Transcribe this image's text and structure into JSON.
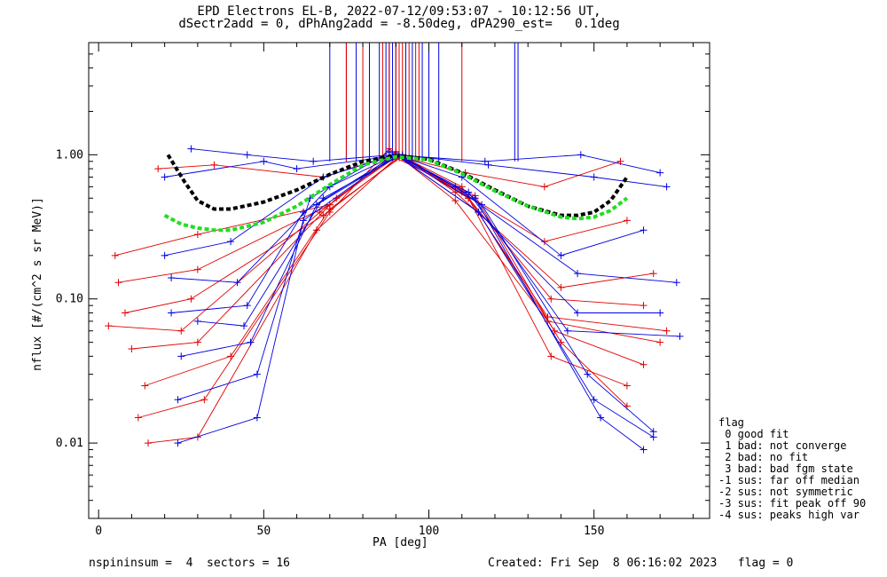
{
  "header": {
    "title_line1": "EPD Electrons EL-B, 2022-07-12/09:53:07 - 10:12:56 UT,",
    "title_line2": "dSectr2add = 0, dPhAng2add = -8.50deg, dPA290_est=   0.1deg"
  },
  "footer": {
    "left": "nspininsum =  4  sectors = 16",
    "right": "Created: Fri Sep  8 06:16:02 2023   flag = 0"
  },
  "legend": {
    "title": "flag",
    "items": [
      " 0 good fit",
      " 1 bad: not converge",
      " 2 bad: no fit",
      " 3 bad: bad fgm state",
      "-1 sus: far off median",
      "-2 sus: not symmetric",
      "-3 sus: fit peak off 90",
      "-4 sus: peaks high var"
    ]
  },
  "colors": {
    "red": "#e00000",
    "blue": "#0000e0",
    "black_fit": "#000000",
    "green_fit": "#22dd22"
  },
  "chart_data": {
    "type": "line",
    "xlabel": "PA [deg]",
    "ylabel": "nflux [#/(cm^2 s sr MeV)]",
    "xlim": [
      -3,
      185
    ],
    "ylim": [
      0.003,
      6.0
    ],
    "yscale": "log",
    "xticks": [
      0,
      50,
      100,
      150
    ],
    "yticks": [
      {
        "value": 0.01,
        "label": "0.01"
      },
      {
        "value": 0.1,
        "label": "0.10"
      },
      {
        "value": 1.0,
        "label": "1.00"
      }
    ],
    "series": [
      {
        "color": "red",
        "x": [
          5,
          30,
          70,
          90,
          110,
          135,
          160
        ],
        "y": [
          0.2,
          0.28,
          0.45,
          1.05,
          0.55,
          0.25,
          0.35
        ]
      },
      {
        "color": "red",
        "x": [
          8,
          28,
          68,
          92,
          112,
          137,
          165
        ],
        "y": [
          0.08,
          0.1,
          0.38,
          1.0,
          0.5,
          0.1,
          0.09
        ]
      },
      {
        "color": "red",
        "x": [
          12,
          32,
          70,
          88,
          108,
          136,
          170
        ],
        "y": [
          0.015,
          0.02,
          0.4,
          1.1,
          0.48,
          0.07,
          0.05
        ]
      },
      {
        "color": "red",
        "x": [
          15,
          30,
          66,
          90,
          114,
          140,
          160
        ],
        "y": [
          0.01,
          0.011,
          0.3,
          0.95,
          0.52,
          0.05,
          0.018
        ]
      },
      {
        "color": "red",
        "x": [
          10,
          30,
          72,
          91,
          110,
          138,
          165
        ],
        "y": [
          0.045,
          0.05,
          0.5,
          1.0,
          0.6,
          0.06,
          0.035
        ]
      },
      {
        "color": "red",
        "x": [
          18,
          35,
          68,
          89,
          111,
          135,
          158
        ],
        "y": [
          0.8,
          0.85,
          0.7,
          1.0,
          0.75,
          0.6,
          0.9
        ]
      },
      {
        "color": "red",
        "x": [
          3,
          25,
          67,
          90,
          112,
          136,
          172
        ],
        "y": [
          0.065,
          0.06,
          0.4,
          1.0,
          0.5,
          0.075,
          0.06
        ]
      },
      {
        "color": "red",
        "x": [
          6,
          30,
          70,
          90,
          108,
          140,
          168
        ],
        "y": [
          0.13,
          0.16,
          0.45,
          1.05,
          0.55,
          0.12,
          0.15
        ]
      },
      {
        "color": "red",
        "x": [
          14,
          40,
          70,
          92,
          112,
          137,
          160
        ],
        "y": [
          0.025,
          0.04,
          0.42,
          0.98,
          0.5,
          0.04,
          0.025
        ]
      },
      {
        "color": "blue",
        "x": [
          20,
          40,
          68,
          90,
          110,
          140,
          165
        ],
        "y": [
          0.2,
          0.25,
          0.7,
          1.0,
          0.7,
          0.2,
          0.3
        ]
      },
      {
        "color": "blue",
        "x": [
          22,
          45,
          62,
          90,
          115,
          145,
          170
        ],
        "y": [
          0.08,
          0.09,
          0.4,
          1.0,
          0.4,
          0.08,
          0.08
        ]
      },
      {
        "color": "blue",
        "x": [
          24,
          48,
          64,
          88,
          116,
          148,
          168
        ],
        "y": [
          0.02,
          0.03,
          0.5,
          1.05,
          0.45,
          0.03,
          0.012
        ]
      },
      {
        "color": "blue",
        "x": [
          20,
          50,
          60,
          92,
          118,
          150,
          172
        ],
        "y": [
          0.7,
          0.9,
          0.8,
          1.0,
          0.85,
          0.7,
          0.6
        ]
      },
      {
        "color": "blue",
        "x": [
          25,
          46,
          66,
          91,
          114,
          152,
          165
        ],
        "y": [
          0.04,
          0.05,
          0.45,
          1.0,
          0.5,
          0.015,
          0.009
        ]
      },
      {
        "color": "blue",
        "x": [
          22,
          42,
          70,
          90,
          108,
          145,
          175
        ],
        "y": [
          0.14,
          0.13,
          0.6,
          1.0,
          0.6,
          0.15,
          0.13
        ]
      },
      {
        "color": "blue",
        "x": [
          28,
          45,
          65,
          89,
          117,
          146,
          170
        ],
        "y": [
          1.1,
          1.0,
          0.9,
          1.0,
          0.9,
          1.0,
          0.75
        ]
      },
      {
        "color": "blue",
        "x": [
          24,
          48,
          62,
          90,
          115,
          150,
          168
        ],
        "y": [
          0.01,
          0.015,
          0.35,
          1.0,
          0.4,
          0.02,
          0.011
        ]
      },
      {
        "color": "blue",
        "x": [
          30,
          44,
          68,
          91,
          112,
          142,
          176
        ],
        "y": [
          0.07,
          0.065,
          0.5,
          0.98,
          0.55,
          0.06,
          0.055
        ]
      }
    ],
    "fits": [
      {
        "color": "black",
        "x": [
          21,
          26,
          30,
          35,
          40,
          50,
          60,
          70,
          80,
          90,
          100,
          110,
          120,
          130,
          140,
          145,
          150,
          155,
          160
        ],
        "y": [
          1.0,
          0.65,
          0.48,
          0.42,
          0.42,
          0.47,
          0.57,
          0.73,
          0.9,
          0.99,
          0.93,
          0.75,
          0.57,
          0.44,
          0.38,
          0.38,
          0.4,
          0.48,
          0.7
        ]
      },
      {
        "color": "green",
        "x": [
          20,
          25,
          30,
          35,
          40,
          50,
          60,
          70,
          80,
          90,
          100,
          110,
          120,
          130,
          140,
          145,
          150,
          155,
          160
        ],
        "y": [
          0.38,
          0.33,
          0.31,
          0.3,
          0.3,
          0.34,
          0.44,
          0.62,
          0.85,
          0.97,
          0.92,
          0.74,
          0.56,
          0.44,
          0.37,
          0.36,
          0.37,
          0.41,
          0.5
        ]
      }
    ],
    "spikes": [
      {
        "color": "blue",
        "x": [
          70,
          75,
          78,
          82,
          85,
          87,
          88,
          89,
          90,
          93,
          95,
          98,
          100,
          103,
          126,
          127
        ]
      },
      {
        "color": "red",
        "x": [
          75,
          80,
          86,
          88,
          90,
          91,
          92,
          94,
          96,
          97,
          110
        ]
      }
    ]
  }
}
